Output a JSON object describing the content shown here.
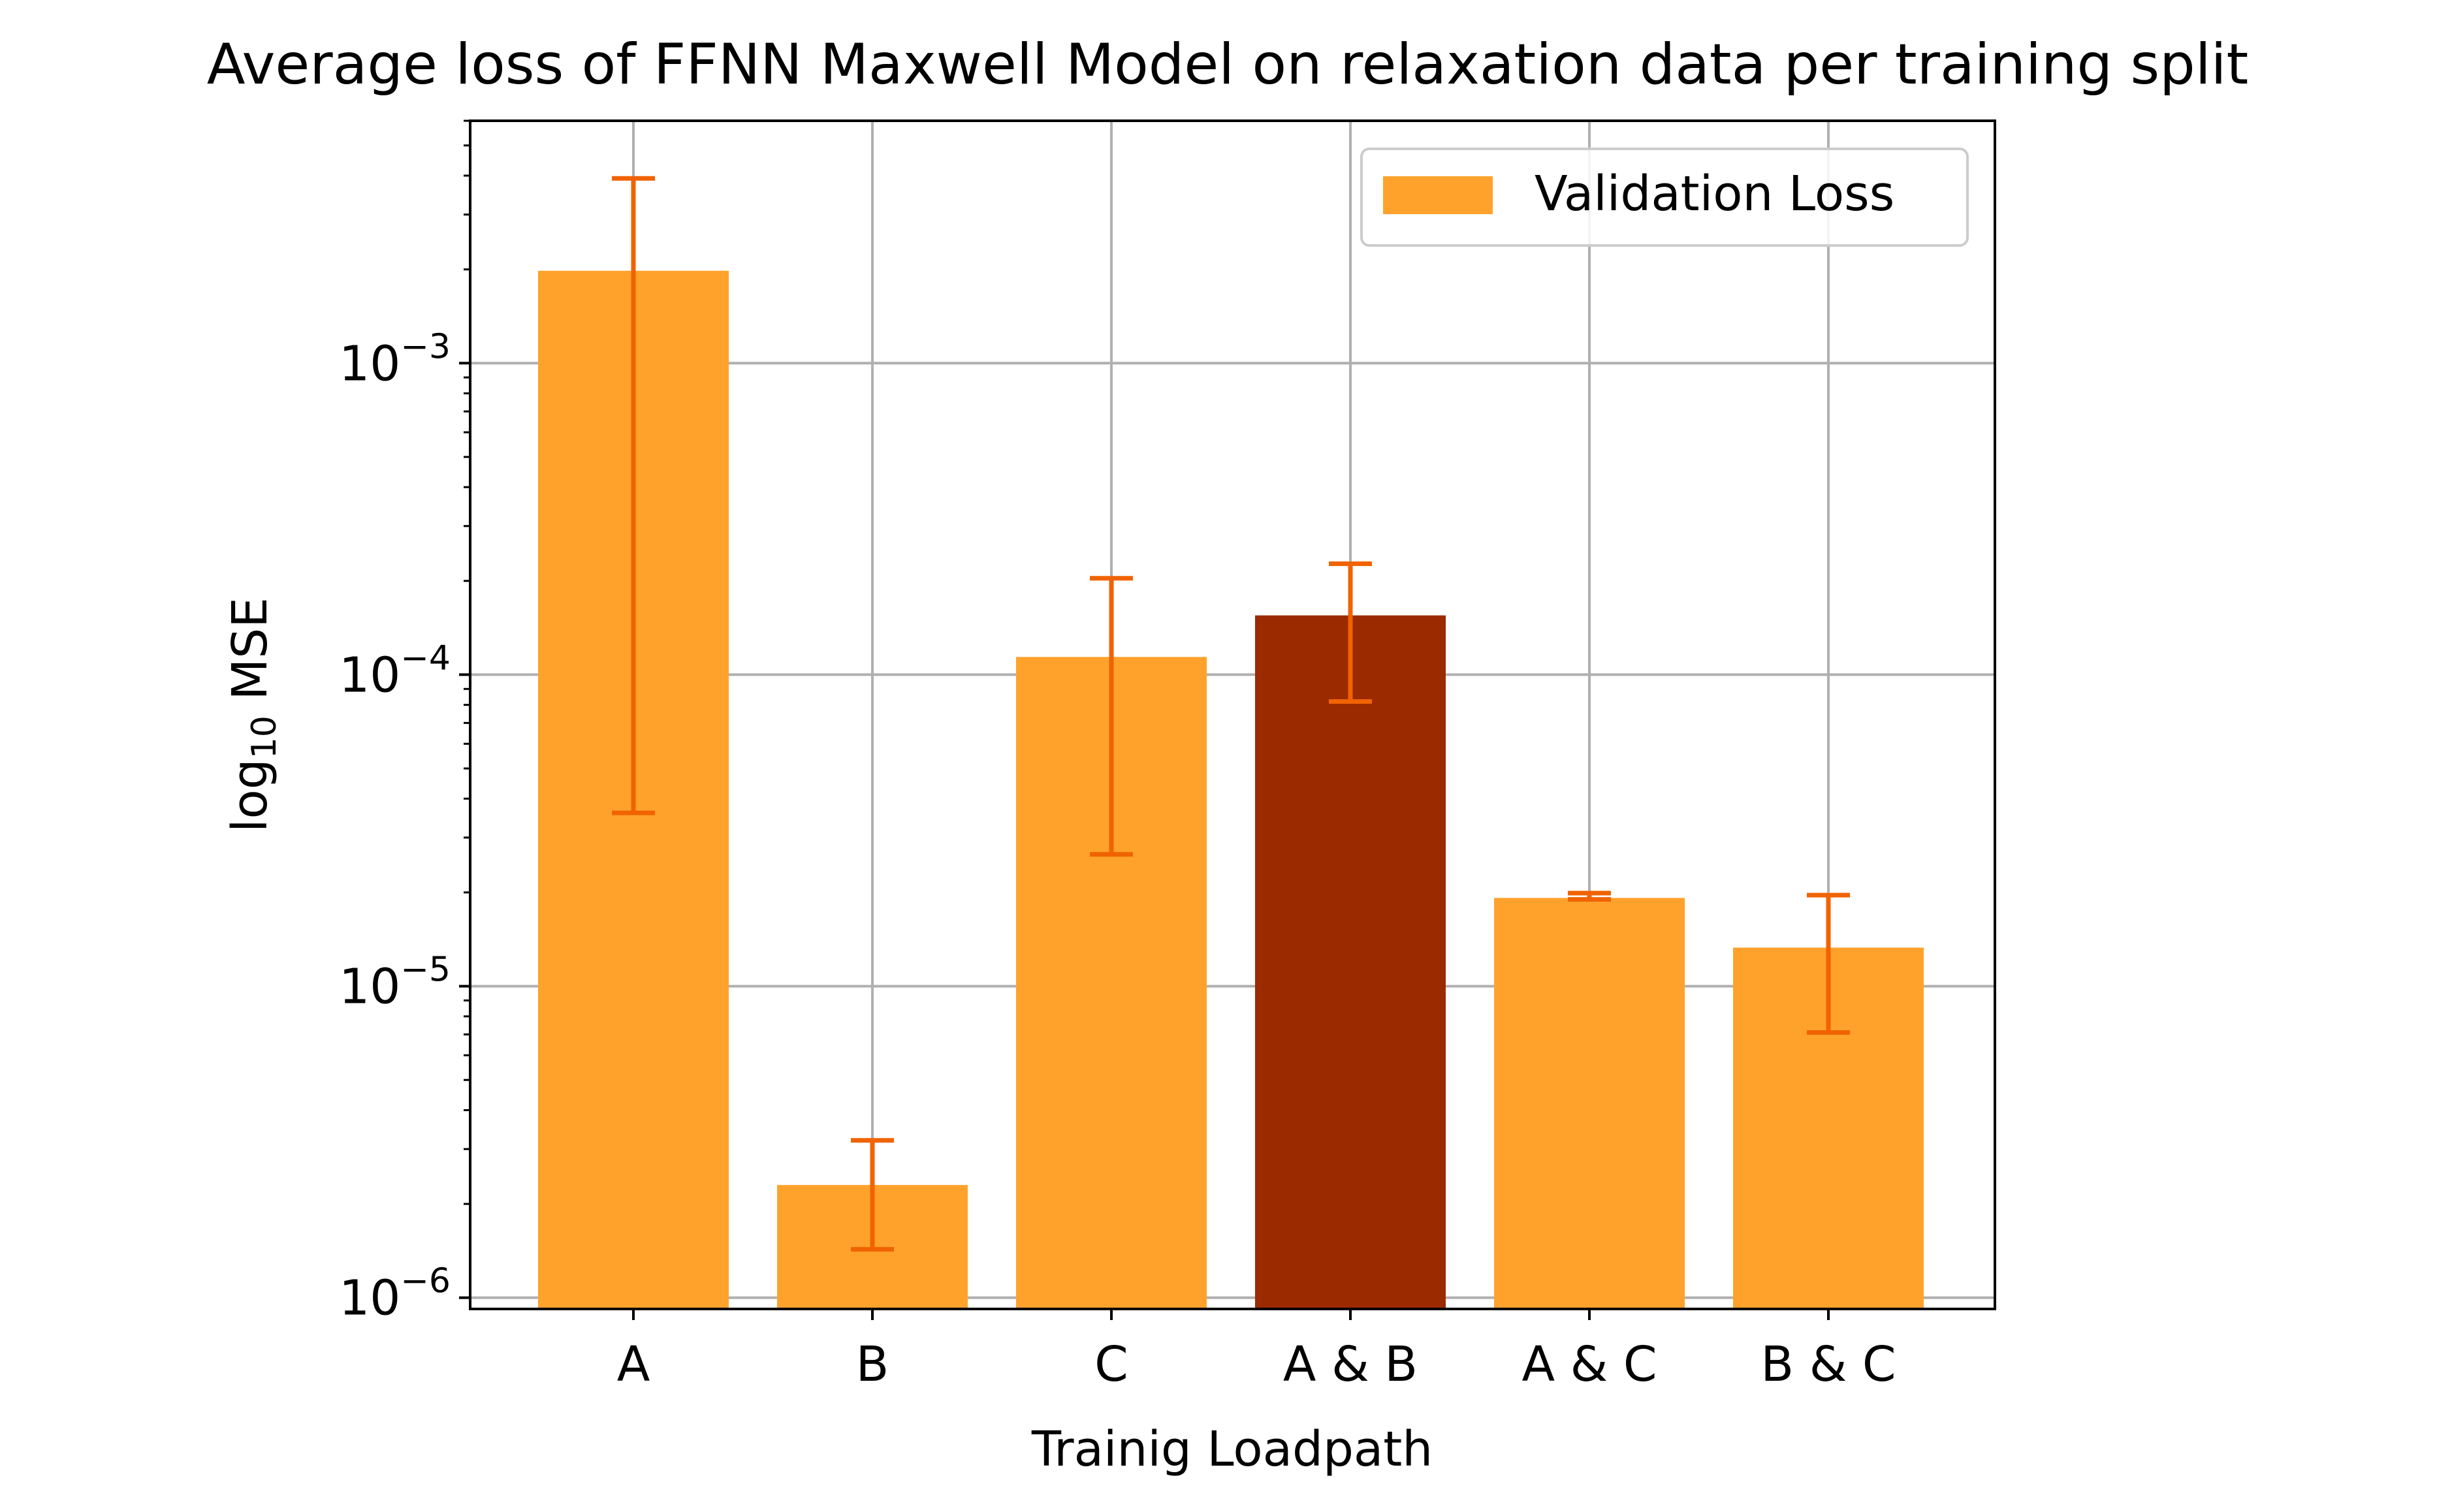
{
  "chart_data": {
    "type": "bar",
    "title": "Average loss of FFNN Maxwell Model on relaxation data per training split",
    "xlabel": "Trainig Loadpath",
    "ylabel": {
      "prefix": "log",
      "subscript": "10",
      "suffix": " MSE"
    },
    "yscale": "log",
    "ylim": [
      9.2e-07,
      0.006
    ],
    "yticks": [
      {
        "value": 1e-06,
        "base": "10",
        "exponent": "−6"
      },
      {
        "value": 1e-05,
        "base": "10",
        "exponent": "−5"
      },
      {
        "value": 0.0001,
        "base": "10",
        "exponent": "−4"
      },
      {
        "value": 0.001,
        "base": "10",
        "exponent": "−3"
      }
    ],
    "grid": true,
    "legend": {
      "position": "top-right",
      "entries": [
        {
          "label": "Validation Loss",
          "color": "#ffa22c"
        }
      ]
    },
    "categories": [
      "A",
      "B",
      "C",
      "A & B",
      "A & C",
      "B & C"
    ],
    "series": [
      {
        "name": "Validation Loss",
        "values": [
          0.00198,
          2.3e-06,
          0.000114,
          0.000155,
          1.92e-05,
          1.33e-05
        ],
        "error_low": [
          3.6e-05,
          1.43e-06,
          2.65e-05,
          8.2e-05,
          1.9e-05,
          7.1e-06
        ],
        "error_high": [
          0.00392,
          3.2e-06,
          0.000204,
          0.000227,
          1.99e-05,
          1.96e-05
        ],
        "colors": [
          "#ffa22c",
          "#ffa22c",
          "#ffa22c",
          "#9c2a00",
          "#ffa22c",
          "#ffa22c"
        ]
      }
    ],
    "colors": {
      "bar": "#ffa22c",
      "highlight": "#9c2a00",
      "errorbar": "#f06300",
      "grid": "#b0b0b0",
      "axis": "#000000"
    }
  }
}
